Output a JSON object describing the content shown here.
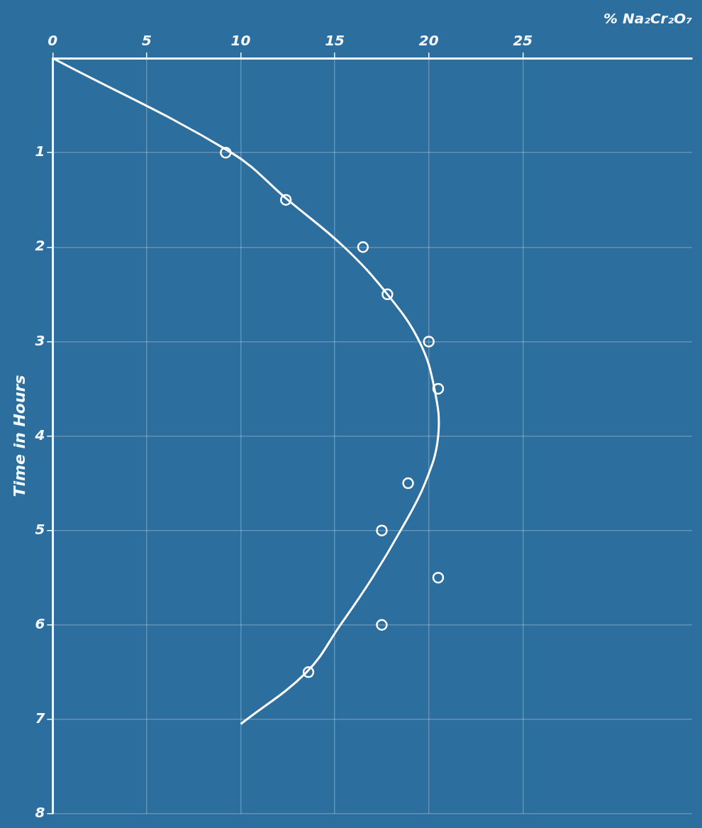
{
  "chart_data": {
    "type": "scatter",
    "x_label": "% Na₂Cr₂O₇",
    "y_label": "Time in Hours",
    "xlim": [
      0,
      34
    ],
    "xticks": [
      0,
      5,
      10,
      15,
      20,
      25
    ],
    "ylim": [
      0,
      8
    ],
    "yticks": [
      1,
      2,
      3,
      4,
      5,
      6,
      7,
      8
    ],
    "grid": true,
    "series": [
      {
        "type": "scatter",
        "color": "#ffffff",
        "marker": "circle",
        "x": [
          9.2,
          12.4,
          16.5,
          17.8,
          20.0,
          20.5,
          18.9,
          17.5,
          20.5,
          17.5,
          13.6
        ],
        "values": [
          1.0,
          1.5,
          2.0,
          2.5,
          3.0,
          3.5,
          4.5,
          5.0,
          5.5,
          6.0,
          6.5
        ]
      },
      {
        "type": "line",
        "color": "#ffffff",
        "line_style": "solid",
        "x": [
          0,
          9.5,
          12.5,
          15.5,
          17.8,
          19.5,
          20.3,
          20.5,
          19.8,
          18.5,
          17.0,
          15.3,
          13.5,
          10.0
        ],
        "values": [
          0,
          1.0,
          1.5,
          2.0,
          2.5,
          3.0,
          3.5,
          4.0,
          4.5,
          5.0,
          5.5,
          6.0,
          6.5,
          7.05
        ]
      }
    ]
  }
}
